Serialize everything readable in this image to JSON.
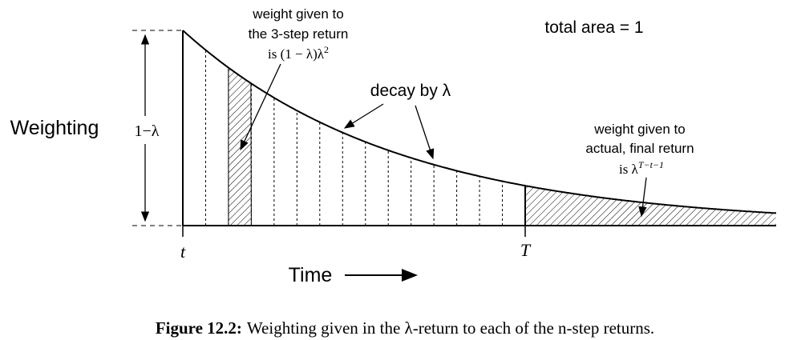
{
  "y_axis_label": "Weighting",
  "y_tick_label": "1−λ",
  "x_axis_label": "Time",
  "x_tick_start": "t",
  "x_tick_end": "T",
  "total_area_note": "total area = 1",
  "decay_note": "decay by λ",
  "three_step_note": {
    "lines": [
      "weight given to",
      "the 3-step return"
    ],
    "math": "is (1 − λ)λ",
    "sup": "2"
  },
  "final_note": {
    "lines": [
      "weight given to",
      "actual, final return"
    ],
    "math": "is λ",
    "sup": "T−t−1"
  },
  "caption": {
    "label": "Figure 12.2:",
    "text": "Weighting given in the λ-return to each of the n-step returns."
  }
}
